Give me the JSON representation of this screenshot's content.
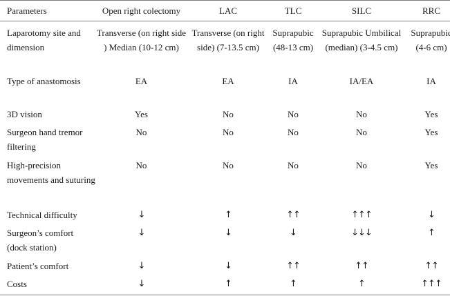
{
  "table": {
    "headers": [
      "Parameters",
      "Open right colectomy",
      "LAC",
      "TLC",
      "SILC",
      "RRC"
    ],
    "rows": [
      {
        "key": "incision",
        "label": "Laparotomy site and dimension",
        "cells": [
          "Transverse (on right side ) Median (10-12 cm)",
          "Transverse (on right side) (7-13.5 cm)",
          "Suprapubic (48-13 cm)",
          "Suprapubic Umbilical (median) (3-4.5 cm)",
          "Suprapubic (4-6 cm)"
        ]
      },
      {
        "key": "anast",
        "label": "Type of anastomosis",
        "cells": [
          "EA",
          "EA",
          "IA",
          "IA/EA",
          "IA"
        ]
      },
      {
        "key": "3d",
        "label": "3D vision",
        "cells": [
          "Yes",
          "No",
          "No",
          "No",
          "Yes"
        ]
      },
      {
        "key": "tremor",
        "label": "Surgeon hand tremor filtering",
        "cells": [
          "No",
          "No",
          "No",
          "No",
          "Yes"
        ]
      },
      {
        "key": "prec",
        "label": "High-precision movements and suturing",
        "cells": [
          "No",
          "No",
          "No",
          "No",
          "Yes"
        ]
      },
      {
        "key": "tech",
        "label": "Technical difficulty",
        "cells": [
          "↓",
          "↑",
          "↑↑",
          "↑↑↑",
          "↓"
        ]
      },
      {
        "key": "surg",
        "label": "Surgeon’s comfort (dock station)",
        "cells": [
          "↓",
          "↓",
          "↓",
          "↓↓↓",
          "↑"
        ]
      },
      {
        "key": "pat",
        "label": "Patient’s comfort",
        "cells": [
          "↓",
          "↓",
          "↑↑",
          "↑↑",
          "↑↑"
        ]
      },
      {
        "key": "cost",
        "label": "Costs",
        "cells": [
          "↓",
          "↑",
          "↑",
          "↑",
          "↑↑↑"
        ]
      }
    ]
  }
}
